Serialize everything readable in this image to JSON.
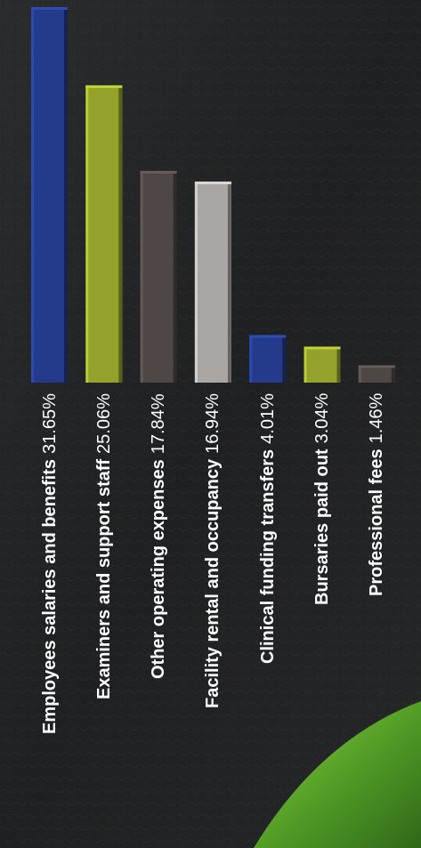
{
  "chart_data": {
    "type": "bar",
    "categories": [
      "Employees salaries and benefits",
      "Examiners and support staff",
      "Other operating expenses",
      "Facility rental and occupancy",
      "Clinical funding transfers",
      "Bursaries paid out",
      "Professional fees"
    ],
    "values": [
      31.65,
      25.06,
      17.84,
      16.94,
      4.01,
      3.04,
      1.46
    ],
    "value_labels": [
      "31.65%",
      "25.06%",
      "17.84%",
      "16.94%",
      "4.01%",
      "3.04%",
      "1.46%"
    ],
    "bar_colors": [
      "#233b8a",
      "#94a22c",
      "#4f4746",
      "#aaa6a3",
      "#233b8a",
      "#94a22c",
      "#4f4746"
    ],
    "title": "",
    "xlabel": "",
    "ylabel": "",
    "ylim": [
      0,
      31.65
    ],
    "grid": false,
    "legend": "none",
    "background": "dark leather texture with green curved accent at bottom"
  }
}
